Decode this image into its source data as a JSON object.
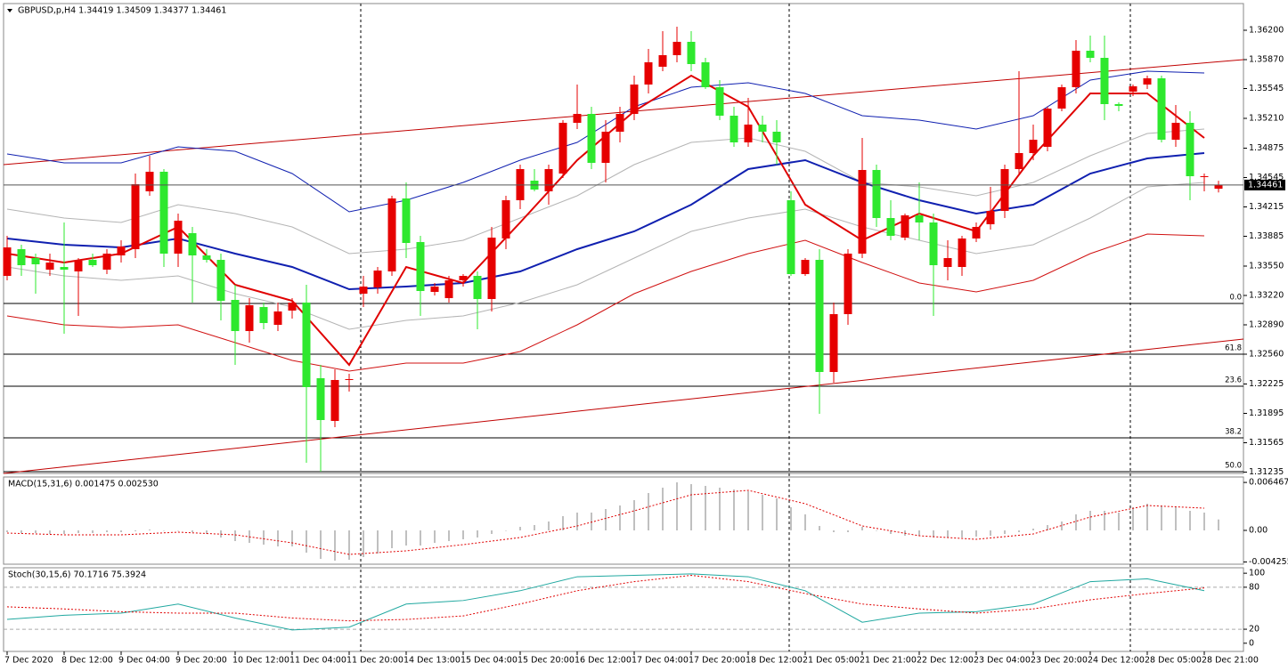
{
  "chart_data": [
    {
      "type": "candlestick",
      "title": "GBPUSD,p,H4  1.34419 1.34509 1.34377 1.34461",
      "categories": [
        "7 Dec 2020",
        null,
        null,
        null,
        "8 Dec 12:00",
        null,
        null,
        null,
        "9 Dec 04:00",
        null,
        null,
        null,
        "9 Dec 20:00",
        null,
        null,
        null,
        "10 Dec 12:00",
        null,
        null,
        null,
        "11 Dec 04:00",
        null,
        null,
        null,
        "11 Dec 20:00",
        null,
        null,
        null,
        "14 Dec 13:00",
        null,
        null,
        null,
        "15 Dec 04:00",
        null,
        null,
        null,
        "15 Dec 20:00",
        null,
        null,
        null,
        "16 Dec 12:00",
        null,
        null,
        null,
        "17 Dec 04:00",
        null,
        null,
        null,
        "17 Dec 20:00",
        null,
        null,
        null,
        "18 Dec 12:00",
        null,
        null,
        null,
        "21 Dec 05:00",
        null,
        null,
        null,
        "21 Dec 21:00",
        null,
        null,
        null,
        "22 Dec 12:00",
        null,
        null,
        null,
        "23 Dec 04:00",
        null,
        null,
        null,
        "23 Dec 20:00",
        null,
        null,
        null,
        "24 Dec 12:00",
        null,
        null,
        null,
        "28 Dec 05:00",
        null,
        null,
        null,
        "28 Dec 21:00",
        null
      ],
      "open": [
        1.3344,
        1.3374,
        1.3364,
        1.3351,
        1.3354,
        1.3349,
        1.3362,
        1.3351,
        1.3367,
        1.3374,
        1.3439,
        1.3461,
        1.3369,
        1.3392,
        1.3367,
        1.3362,
        1.3317,
        1.3282,
        1.3309,
        1.3289,
        1.3305,
        1.3314,
        1.3229,
        1.3181,
        1.3227,
        1.3324,
        1.3331,
        1.3349,
        1.3431,
        1.3382,
        1.3326,
        1.3319,
        1.3339,
        1.3344,
        1.3318,
        1.3386,
        1.3429,
        1.3451,
        1.3439,
        1.3459,
        1.3516,
        1.3526,
        1.3471,
        1.3506,
        1.3526,
        1.3559,
        1.3579,
        1.3592,
        1.3607,
        1.3584,
        1.3556,
        1.3524,
        1.3494,
        1.3514,
        1.3506,
        1.3429,
        1.3346,
        1.3362,
        1.3236,
        1.3301,
        1.3369,
        1.3463,
        1.3409,
        1.3387,
        1.3412,
        1.3404,
        1.3354,
        1.3354,
        1.3386,
        1.3402,
        1.3417,
        1.3464,
        1.3482,
        1.3489,
        1.3532,
        1.3556,
        1.3597,
        1.3589,
        1.3537,
        1.3551,
        1.3559,
        1.3566,
        1.3497,
        1.3516,
        1.3456,
        1.34419
      ],
      "high": [
        1.3389,
        1.3379,
        1.3369,
        1.3369,
        1.3404,
        1.3364,
        1.3369,
        1.3374,
        1.3384,
        1.3459,
        1.3479,
        1.3464,
        1.3414,
        1.3399,
        1.3374,
        1.3369,
        1.3334,
        1.3319,
        1.3314,
        1.3314,
        1.3319,
        1.3334,
        1.3244,
        1.3239,
        1.3234,
        1.3344,
        1.3354,
        1.3434,
        1.3449,
        1.3389,
        1.3336,
        1.3344,
        1.3346,
        1.3349,
        1.3399,
        1.3434,
        1.3469,
        1.3464,
        1.3469,
        1.3519,
        1.3559,
        1.3534,
        1.3519,
        1.3534,
        1.3569,
        1.3599,
        1.3619,
        1.3624,
        1.3619,
        1.3589,
        1.3564,
        1.3534,
        1.3544,
        1.3524,
        1.3519,
        1.3439,
        1.3364,
        1.3374,
        1.3314,
        1.3374,
        1.3499,
        1.3469,
        1.3429,
        1.3414,
        1.3449,
        1.3414,
        1.3384,
        1.3389,
        1.3404,
        1.3444,
        1.3469,
        1.3574,
        1.3514,
        1.3534,
        1.3559,
        1.3609,
        1.3614,
        1.3614,
        1.3539,
        1.3559,
        1.3569,
        1.3569,
        1.3536,
        1.3529,
        1.3459,
        1.34509
      ],
      "low": [
        1.3339,
        1.3344,
        1.3324,
        1.3344,
        1.3279,
        1.3299,
        1.3354,
        1.3346,
        1.3359,
        1.3364,
        1.3434,
        1.3354,
        1.3354,
        1.3314,
        1.3359,
        1.3294,
        1.3244,
        1.3269,
        1.3284,
        1.3282,
        1.3296,
        1.3134,
        1.3124,
        1.3174,
        1.3214,
        1.3309,
        1.3324,
        1.3344,
        1.3364,
        1.3299,
        1.3322,
        1.3314,
        1.3332,
        1.3284,
        1.3304,
        1.3374,
        1.3419,
        1.3439,
        1.3424,
        1.3454,
        1.3509,
        1.3464,
        1.3449,
        1.3494,
        1.3519,
        1.3549,
        1.3574,
        1.3584,
        1.3574,
        1.3554,
        1.3519,
        1.3489,
        1.3489,
        1.3494,
        1.3469,
        1.3344,
        1.3344,
        1.3189,
        1.3224,
        1.3289,
        1.3364,
        1.3399,
        1.3384,
        1.3384,
        1.3384,
        1.3299,
        1.3339,
        1.3344,
        1.3382,
        1.3396,
        1.3409,
        1.3459,
        1.3474,
        1.3484,
        1.3529,
        1.3549,
        1.3584,
        1.3519,
        1.3529,
        1.3546,
        1.3554,
        1.3494,
        1.3489,
        1.3429,
        1.3439,
        1.34377
      ],
      "close": [
        1.3376,
        1.3356,
        1.3357,
        1.3359,
        1.3351,
        1.3361,
        1.3356,
        1.3369,
        1.3377,
        1.3447,
        1.3461,
        1.3369,
        1.3406,
        1.3367,
        1.3362,
        1.3316,
        1.3282,
        1.3311,
        1.3291,
        1.3304,
        1.3314,
        1.3219,
        1.3182,
        1.3227,
        1.3228,
        1.3332,
        1.335,
        1.3431,
        1.3381,
        1.3327,
        1.3332,
        1.3339,
        1.3344,
        1.3318,
        1.3387,
        1.3429,
        1.3464,
        1.3441,
        1.3464,
        1.3516,
        1.3526,
        1.3471,
        1.3506,
        1.3526,
        1.3559,
        1.3584,
        1.3592,
        1.3607,
        1.3582,
        1.3556,
        1.3524,
        1.3494,
        1.3514,
        1.3506,
        1.3494,
        1.3346,
        1.3362,
        1.3236,
        1.3301,
        1.3369,
        1.3463,
        1.3409,
        1.3389,
        1.3412,
        1.3404,
        1.3356,
        1.3364,
        1.3386,
        1.3399,
        1.3417,
        1.3464,
        1.3482,
        1.3497,
        1.3532,
        1.3556,
        1.3597,
        1.3589,
        1.3537,
        1.3535,
        1.3557,
        1.3566,
        1.3497,
        1.3516,
        1.3456,
        1.3456,
        1.34461
      ],
      "bull_color": "#e60000",
      "bear_color": "#2ee82e",
      "ylim": [
        1.3122,
        1.365
      ],
      "yticks": [
        {
          "value": 1.362,
          "label": "1.36200"
        },
        {
          "value": 1.3587,
          "label": "1.35870"
        },
        {
          "value": 1.35545,
          "label": "1.35545"
        },
        {
          "value": 1.3521,
          "label": "1.35210"
        },
        {
          "value": 1.34875,
          "label": "1.34875"
        },
        {
          "value": 1.34545,
          "label": "1.34545"
        },
        {
          "value": 1.34215,
          "label": "1.34215"
        },
        {
          "value": 1.33885,
          "label": "1.33885"
        },
        {
          "value": 1.3355,
          "label": "1.33550"
        },
        {
          "value": 1.3322,
          "label": "1.33220"
        },
        {
          "value": 1.3289,
          "label": "1.32890"
        },
        {
          "value": 1.3256,
          "label": "1.32560"
        },
        {
          "value": 1.32225,
          "label": "1.32225"
        },
        {
          "value": 1.31895,
          "label": "1.31895"
        },
        {
          "value": 1.31565,
          "label": "1.31565"
        },
        {
          "value": 1.31235,
          "label": "1.31235"
        }
      ],
      "series": [
        {
          "color": "#b4b4b4",
          "width": 1,
          "x": [
            0,
            4,
            8,
            12,
            16,
            20,
            24,
            28,
            32,
            36,
            40,
            44,
            48,
            52,
            56,
            60,
            64,
            68,
            72,
            76,
            80,
            84
          ],
          "values": [
            1.3419,
            1.3409,
            1.3404,
            1.3424,
            1.3414,
            1.3399,
            1.3369,
            1.3374,
            1.3384,
            1.3409,
            1.3434,
            1.3469,
            1.3494,
            1.3499,
            1.3484,
            1.3449,
            1.3444,
            1.3434,
            1.3449,
            1.3479,
            1.3504,
            1.3509
          ]
        },
        {
          "color": "#b4b4b4",
          "width": 1,
          "x": [
            0,
            4,
            8,
            12,
            16,
            20,
            24,
            28,
            32,
            36,
            40,
            44,
            48,
            52,
            56,
            60,
            64,
            68,
            72,
            76,
            80,
            84
          ],
          "values": [
            1.3354,
            1.3344,
            1.3339,
            1.3344,
            1.3324,
            1.3309,
            1.3284,
            1.3294,
            1.3299,
            1.3314,
            1.3334,
            1.3364,
            1.3394,
            1.3409,
            1.3419,
            1.3399,
            1.3384,
            1.3369,
            1.3379,
            1.3409,
            1.3444,
            1.3449
          ]
        },
        {
          "color": "#1020b0",
          "width": 1,
          "x": [
            0,
            4,
            8,
            12,
            16,
            20,
            24,
            28,
            32,
            36,
            40,
            44,
            48,
            52,
            56,
            60,
            64,
            68,
            72,
            76,
            80,
            84
          ],
          "values": [
            1.3481,
            1.3471,
            1.3471,
            1.3489,
            1.3484,
            1.3459,
            1.3416,
            1.3429,
            1.3449,
            1.3474,
            1.3494,
            1.3534,
            1.3556,
            1.3561,
            1.3549,
            1.3524,
            1.3519,
            1.3509,
            1.3524,
            1.3564,
            1.3574,
            1.3572
          ]
        },
        {
          "color": "#d01010",
          "width": 1,
          "x": [
            0,
            4,
            8,
            12,
            16,
            20,
            24,
            28,
            32,
            36,
            40,
            44,
            48,
            52,
            56,
            60,
            64,
            68,
            72,
            76,
            80,
            84
          ],
          "values": [
            1.3299,
            1.3289,
            1.3286,
            1.3289,
            1.3269,
            1.3249,
            1.3237,
            1.3246,
            1.3246,
            1.3259,
            1.3289,
            1.3324,
            1.3349,
            1.3369,
            1.3384,
            1.3359,
            1.3336,
            1.3326,
            1.3339,
            1.3369,
            1.3391,
            1.3389
          ]
        },
        {
          "color": "#1020b0",
          "width": 2,
          "x": [
            0,
            4,
            8,
            12,
            16,
            20,
            24,
            28,
            32,
            36,
            40,
            44,
            48,
            52,
            56,
            60,
            64,
            68,
            72,
            76,
            80,
            84
          ],
          "values": [
            1.3386,
            1.3379,
            1.3376,
            1.3386,
            1.3369,
            1.3354,
            1.3329,
            1.3332,
            1.3336,
            1.3349,
            1.3374,
            1.3394,
            1.3424,
            1.3464,
            1.3474,
            1.3449,
            1.3429,
            1.3414,
            1.3424,
            1.3459,
            1.3476,
            1.3482
          ]
        },
        {
          "color": "#e00000",
          "width": 2,
          "x": [
            0,
            4,
            8,
            12,
            16,
            20,
            24,
            28,
            32,
            36,
            40,
            44,
            48,
            52,
            56,
            60,
            64,
            68,
            72,
            76,
            80,
            84
          ],
          "values": [
            1.3369,
            1.3359,
            1.3369,
            1.3399,
            1.3334,
            1.3316,
            1.3244,
            1.3354,
            1.3336,
            1.3404,
            1.3474,
            1.3529,
            1.3569,
            1.3534,
            1.3424,
            1.3384,
            1.3414,
            1.3394,
            1.3479,
            1.3549,
            1.3549,
            1.3499
          ]
        }
      ],
      "trendlines": [
        {
          "color": "#c00000",
          "x": [
            -0.25,
            86.75
          ],
          "values": [
            1.3469,
            1.3587
          ]
        },
        {
          "color": "#c00000",
          "x": [
            -0.25,
            86.75
          ],
          "values": [
            1.3122,
            1.3273
          ]
        }
      ],
      "levels": [
        {
          "value": 1.3313,
          "label": "0.0"
        },
        {
          "value": 1.3256,
          "label": "61.8"
        },
        {
          "value": 1.322,
          "label": "23.6"
        },
        {
          "value": 1.3162,
          "label": "38.2"
        },
        {
          "value": 1.3124,
          "label": "50.0"
        }
      ]
    },
    {
      "type": "macd",
      "title": "MACD(15,31,6) 0.001475 0.002530",
      "color": "#c0c0c0",
      "values": [
        -0.00024,
        -0.00036,
        -0.00036,
        -0.00048,
        -0.00048,
        -0.00036,
        -0.00036,
        -0.00024,
        -0.00024,
        -0.00012,
        0.00012,
        0,
        0,
        -0.00024,
        -0.00048,
        -0.00096,
        -0.00144,
        -0.00168,
        -0.00192,
        -0.00216,
        -0.00216,
        -0.003,
        -0.00384,
        -0.00408,
        -0.00396,
        -0.0036,
        -0.00312,
        -0.0024,
        -0.00204,
        -0.00204,
        -0.00168,
        -0.00144,
        -0.0012,
        -0.00096,
        -0.00048,
        0,
        0.00048,
        0.00072,
        0.0012,
        0.00192,
        0.0024,
        0.0024,
        0.00288,
        0.00336,
        0.00408,
        0.00504,
        0.00576,
        0.00648,
        0.00624,
        0.006,
        0.00576,
        0.00552,
        0.00528,
        0.0048,
        0.00432,
        0.00312,
        0.00216,
        0.0006,
        -0.00024,
        -0.00024,
        0.00048,
        0,
        -0.00048,
        -0.00072,
        -0.00072,
        -0.00096,
        -0.00096,
        -0.00096,
        -0.00084,
        -0.00072,
        -0.00048,
        -0.00024,
        0.00024,
        0.00072,
        0.0012,
        0.00216,
        0.00264,
        0.00264,
        0.0024,
        0.00312,
        0.0036,
        0.00336,
        0.00312,
        0.00264,
        0.0024,
        0.001475
      ],
      "series": [
        {
          "color": "#e00000",
          "width": 1,
          "dash": true,
          "x": [
            0,
            4,
            8,
            12,
            16,
            20,
            24,
            28,
            32,
            36,
            40,
            44,
            48,
            52,
            56,
            60,
            64,
            68,
            72,
            76,
            80,
            84
          ],
          "values": [
            -0.00036,
            -0.0006,
            -0.0006,
            -0.00024,
            -0.0006,
            -0.00168,
            -0.00324,
            -0.00276,
            -0.00192,
            -0.00096,
            0.0006,
            0.00264,
            0.0048,
            0.0054,
            0.0036,
            0.0006,
            -0.00072,
            -0.0012,
            -0.00048,
            0.0018,
            0.00336,
            0.003
          ]
        }
      ],
      "ylim": [
        -0.00456,
        0.0072
      ],
      "yticks": [
        0.006467,
        {
          "value": 0,
          "label": "0.00"
        },
        -0.004255
      ]
    },
    {
      "type": "stochastic",
      "title": "Stoch(30,15,6) 70.1716 75.3924",
      "series": [
        {
          "color": "#20a8a0",
          "width": 1,
          "x": [
            0,
            4,
            8,
            12,
            16,
            20,
            24,
            28,
            32,
            36,
            40,
            44,
            48,
            52,
            56,
            60,
            64,
            68,
            72,
            76,
            80,
            84
          ],
          "values": [
            34,
            40,
            43,
            56,
            36,
            19,
            23,
            56,
            61,
            75,
            95,
            97,
            99,
            95,
            75,
            30,
            43,
            45,
            56,
            88,
            92,
            75
          ]
        },
        {
          "color": "#e00000",
          "width": 1,
          "dash": true,
          "x": [
            0,
            4,
            8,
            12,
            16,
            20,
            24,
            28,
            32,
            36,
            40,
            44,
            48,
            52,
            56,
            60,
            64,
            68,
            72,
            76,
            80,
            84
          ],
          "values": [
            52,
            49,
            45,
            43,
            43,
            36,
            32,
            34,
            39,
            56,
            75,
            88,
            97,
            88,
            71,
            56,
            49,
            43,
            49,
            62,
            71,
            79
          ]
        }
      ],
      "levels": [
        80,
        20
      ],
      "ylim": [
        -11.7,
        107.8
      ],
      "yticks": [
        100,
        80,
        20,
        0
      ]
    }
  ]
}
